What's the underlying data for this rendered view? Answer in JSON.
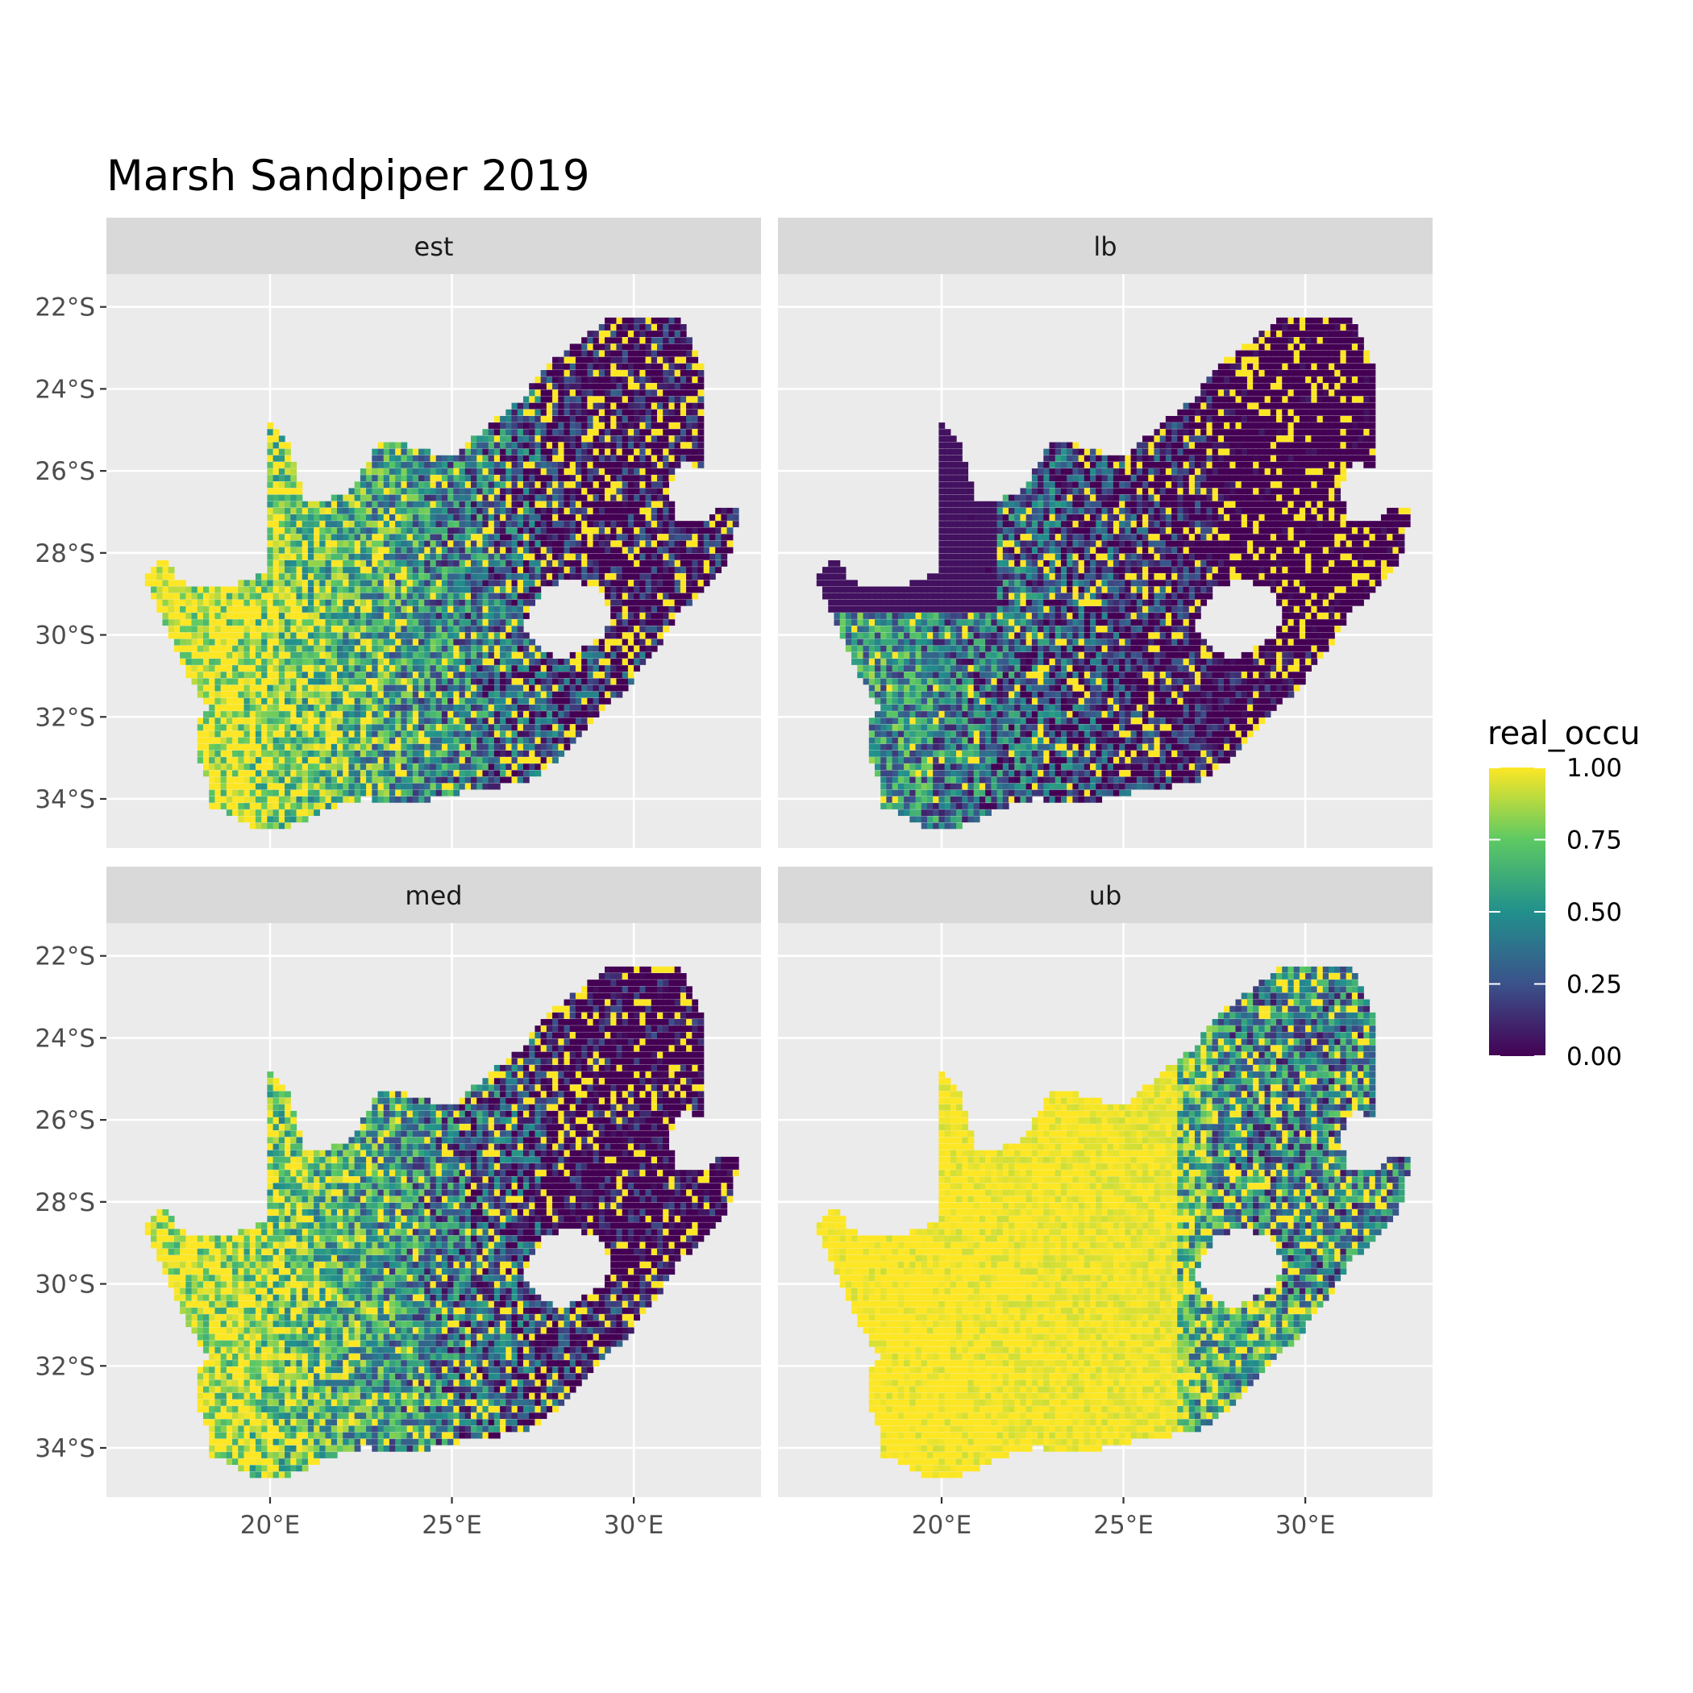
{
  "chart_data": {
    "type": "heatmap",
    "title": "Marsh Sandpiper 2019",
    "xlabel": "",
    "ylabel": "",
    "x_ticks": [
      "20°E",
      "25°E",
      "30°E"
    ],
    "y_ticks": [
      "22°S",
      "24°S",
      "26°S",
      "28°S",
      "30°S",
      "32°S",
      "34°S"
    ],
    "x_tick_values": [
      20,
      25,
      30
    ],
    "y_tick_values": [
      -22,
      -24,
      -26,
      -28,
      -30,
      -32,
      -34
    ],
    "xlim": [
      15.5,
      33.5
    ],
    "ylim": [
      -35.2,
      -21.2
    ],
    "grid": true,
    "legend": {
      "title": "real_occu",
      "labels": [
        "1.00",
        "0.75",
        "0.50",
        "0.25",
        "0.00"
      ],
      "values": [
        1.0,
        0.75,
        0.5,
        0.25,
        0.0
      ],
      "placement": "right",
      "colormap": "viridis"
    },
    "panels": [
      {
        "label": "est",
        "mean_occupancy": 0.55
      },
      {
        "label": "lb",
        "mean_occupancy": 0.2
      },
      {
        "label": "med",
        "mean_occupancy": 0.5
      },
      {
        "label": "ub",
        "mean_occupancy": 0.85
      }
    ]
  },
  "colors": {
    "panel_bg": "#ebebeb",
    "grid": "#ffffff",
    "strip_bg": "#d9d9d9",
    "viridis": [
      "#440154",
      "#3b528b",
      "#21908c",
      "#5dc963",
      "#fde725"
    ]
  }
}
